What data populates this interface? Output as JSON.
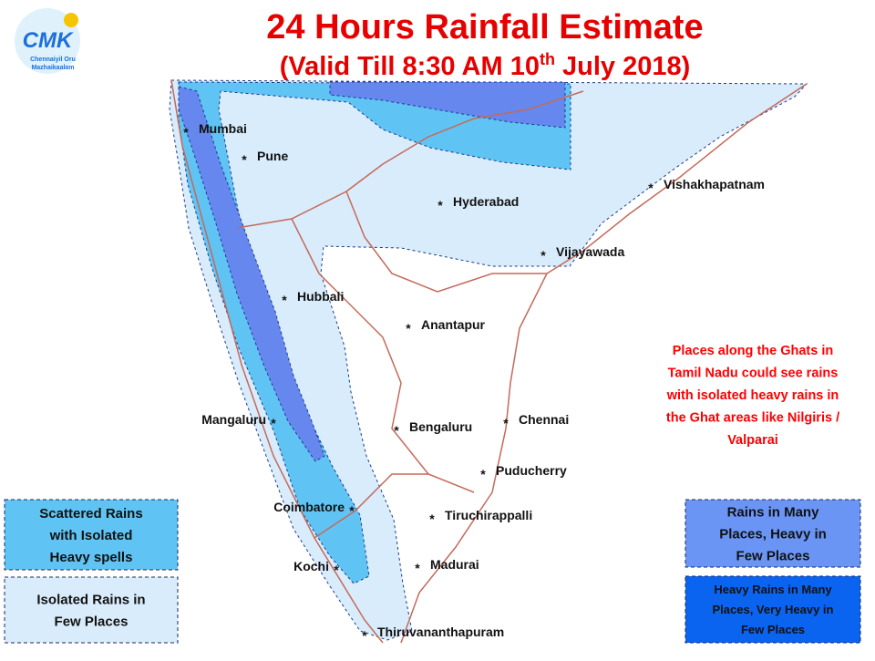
{
  "logo": {
    "text": "CMK",
    "tagline": [
      "Chennaiyil Oru",
      "Mazhaikaalam"
    ]
  },
  "header": {
    "title": "24 Hours Rainfall Estimate",
    "subtitle": {
      "before": "(Valid Till 8:30 AM 10",
      "sup": "th",
      "after": " July 2018)"
    }
  },
  "city_marker": "*",
  "cities": [
    {
      "label": "Mumbai"
    },
    {
      "label": "Pune"
    },
    {
      "label": "Hyderabad"
    },
    {
      "label": "Vishakhapatnam"
    },
    {
      "label": "Vijayawada"
    },
    {
      "label": "Hubbali"
    },
    {
      "label": "Anantapur"
    },
    {
      "label": "Mangaluru"
    },
    {
      "label": "Bengaluru"
    },
    {
      "label": "Chennai"
    },
    {
      "label": "Puducherry"
    },
    {
      "label": "Coimbatore"
    },
    {
      "label": "Tiruchirappalli"
    },
    {
      "label": "Kochi"
    },
    {
      "label": "Madurai"
    },
    {
      "label": "Thiruvananthapuram"
    }
  ],
  "note": {
    "lines": [
      "Places along the Ghats in",
      "Tamil Nadu could see rains",
      "with isolated heavy rains in",
      "the Ghat areas like Nilgiris /",
      "Valparai"
    ]
  },
  "legend": [
    {
      "lines": [
        "Scattered Rains",
        "with Isolated",
        "Heavy spells"
      ]
    },
    {
      "lines": [
        "Isolated Rains in",
        "Few  Places"
      ]
    },
    {
      "lines": [
        "Rains in Many",
        "Places, Heavy in",
        "Few Places"
      ]
    },
    {
      "lines": [
        "Heavy Rains in Many",
        "Places, Very Heavy in",
        "Few Places"
      ]
    }
  ]
}
